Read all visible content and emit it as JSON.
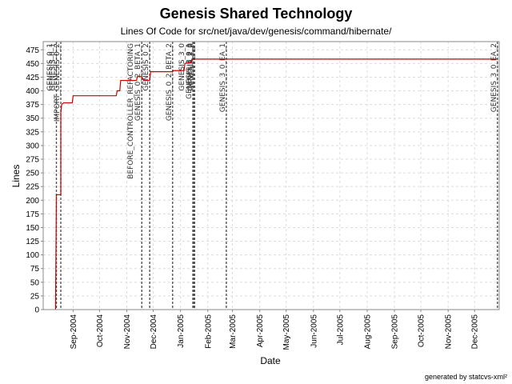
{
  "chart_data": {
    "type": "line",
    "title": "Genesis Shared Technology",
    "subtitle": "Lines Of Code for src/net/java/dev/genesis/command/hibernate/",
    "xlabel": "Date",
    "ylabel": "Lines",
    "ylim": [
      0,
      490
    ],
    "yticks": [
      0,
      25,
      50,
      75,
      100,
      125,
      150,
      175,
      200,
      225,
      250,
      275,
      300,
      325,
      350,
      375,
      400,
      425,
      450,
      475
    ],
    "xlim": [
      "2004-07-29",
      "2005-12-29"
    ],
    "xticks": [
      {
        "date": "2004-09-01",
        "label": "Sep-2004"
      },
      {
        "date": "2004-10-01",
        "label": "Oct-2004"
      },
      {
        "date": "2004-11-01",
        "label": "Nov-2004"
      },
      {
        "date": "2004-12-01",
        "label": "Dec-2004"
      },
      {
        "date": "2005-01-01",
        "label": "Jan-2005"
      },
      {
        "date": "2005-02-01",
        "label": "Feb-2005"
      },
      {
        "date": "2005-03-01",
        "label": "Mar-2005"
      },
      {
        "date": "2005-04-01",
        "label": "Apr-2005"
      },
      {
        "date": "2005-05-01",
        "label": "May-2005"
      },
      {
        "date": "2005-06-01",
        "label": "Jun-2005"
      },
      {
        "date": "2005-07-01",
        "label": "Jul-2005"
      },
      {
        "date": "2005-08-01",
        "label": "Aug-2005"
      },
      {
        "date": "2005-09-01",
        "label": "Sep-2005"
      },
      {
        "date": "2005-10-01",
        "label": "Oct-2005"
      },
      {
        "date": "2005-11-01",
        "label": "Nov-2005"
      },
      {
        "date": "2005-12-01",
        "label": "Dec-2005"
      }
    ],
    "grid": true,
    "line_color": "#cc0000",
    "series": [
      {
        "points": [
          {
            "date": "2004-08-12",
            "y": 0
          },
          {
            "date": "2004-08-13",
            "y": 210
          },
          {
            "date": "2004-08-18",
            "y": 210
          },
          {
            "date": "2004-08-18",
            "y": 360
          },
          {
            "date": "2004-08-19",
            "y": 375
          },
          {
            "date": "2004-08-21",
            "y": 378
          },
          {
            "date": "2004-08-31",
            "y": 378
          },
          {
            "date": "2004-09-01",
            "y": 391
          },
          {
            "date": "2004-10-20",
            "y": 391
          },
          {
            "date": "2004-10-21",
            "y": 400
          },
          {
            "date": "2004-10-24",
            "y": 400
          },
          {
            "date": "2004-10-25",
            "y": 419
          },
          {
            "date": "2004-11-12",
            "y": 419
          },
          {
            "date": "2004-11-13",
            "y": 426
          },
          {
            "date": "2004-11-18",
            "y": 426
          },
          {
            "date": "2004-11-20",
            "y": 419
          },
          {
            "date": "2004-11-27",
            "y": 419
          },
          {
            "date": "2004-11-28",
            "y": 435
          },
          {
            "date": "2004-12-23",
            "y": 435
          },
          {
            "date": "2004-12-24",
            "y": 437
          },
          {
            "date": "2005-01-05",
            "y": 437
          },
          {
            "date": "2005-01-06",
            "y": 450
          },
          {
            "date": "2005-01-13",
            "y": 452
          },
          {
            "date": "2005-01-14",
            "y": 458
          },
          {
            "date": "2005-12-27",
            "y": 458
          }
        ]
      }
    ],
    "markers": [
      {
        "date": "2004-08-13",
        "labels": [
          "GENESIS_0_1"
        ]
      },
      {
        "date": "2004-08-18",
        "labels": [
          "IMPORT_GENESIS_0_2",
          "GENESIS_0_1"
        ]
      },
      {
        "date": "2004-11-18",
        "labels": [
          "GENESIS_0_2_BETA_1",
          "BEFORE_CONTROLLER_REFACTORING"
        ]
      },
      {
        "date": "2004-11-27",
        "labels": [
          "GENESIS_0_2"
        ]
      },
      {
        "date": "2004-12-23",
        "labels": [
          "GENESIS_0_2_BETA_2"
        ]
      },
      {
        "date": "2005-01-15",
        "labels": [
          "GENESIS_3_0_1",
          "GENESIS_3_0"
        ]
      },
      {
        "date": "2005-01-16",
        "labels": [
          "GENESIS_2_0"
        ]
      },
      {
        "date": "2005-01-17",
        "labels": [
          "GENESIS_1_0"
        ]
      },
      {
        "date": "2005-02-22",
        "labels": [
          "GENESIS_3_0_EA_1"
        ]
      },
      {
        "date": "2005-12-27",
        "labels": [
          "GENESIS_3_0_EA_2"
        ]
      }
    ]
  },
  "footer": "generated by statcvs-xml²"
}
